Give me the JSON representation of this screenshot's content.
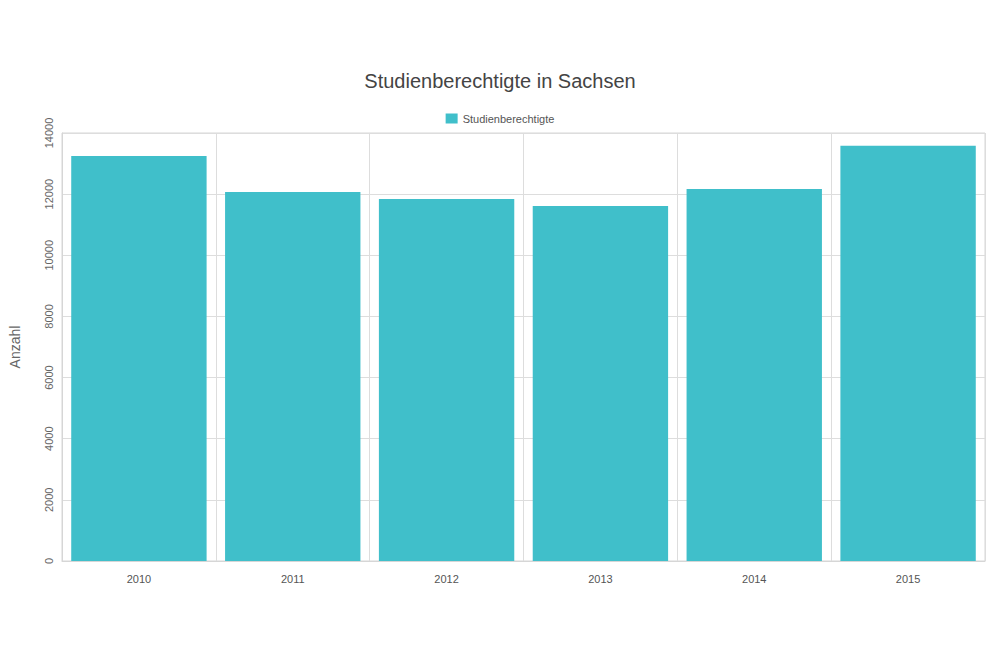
{
  "chart_data": {
    "type": "bar",
    "title": "Studienberechtigte in Sachsen",
    "y_label": "Anzahl",
    "categories": [
      "2010",
      "2011",
      "2012",
      "2013",
      "2014",
      "2015"
    ],
    "series": [
      {
        "name": "Studienberechtigte",
        "color": "#40bfca",
        "values": [
          13250,
          12070,
          11840,
          11610,
          12170,
          13580
        ]
      }
    ],
    "ylim": [
      0,
      14000
    ],
    "yticks": [
      0,
      2000,
      4000,
      6000,
      8000,
      10000,
      12000,
      14000
    ],
    "grid": true,
    "legend": "top"
  }
}
